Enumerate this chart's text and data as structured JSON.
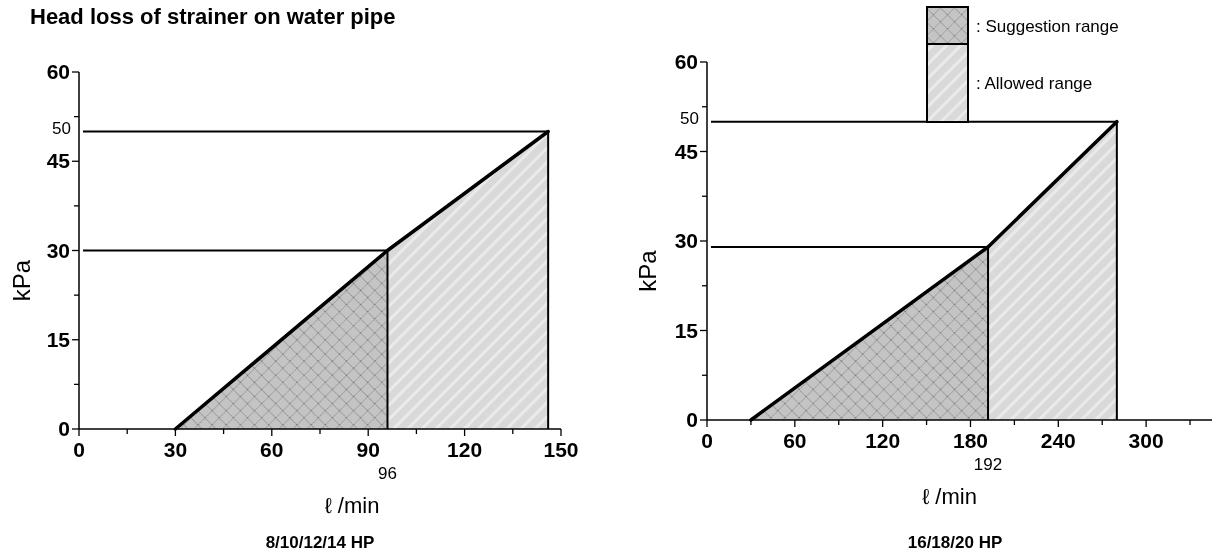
{
  "chart_data": [
    {
      "type": "line",
      "title": "Head loss of strainer on water pipe",
      "xlabel": "ℓ /min",
      "ylabel": "kPa",
      "annotations": [
        "8/10/12/14 HP"
      ],
      "series": [
        {
          "type": "area",
          "color": "#c4c4c4",
          "x": [
            30,
            96
          ],
          "values": [
            0,
            30
          ]
        },
        {
          "type": "area",
          "color": "#d9d9d9",
          "x": [
            96,
            146
          ],
          "values": [
            30,
            50
          ]
        },
        {
          "type": "line",
          "color": "#000000",
          "x": [
            30,
            96,
            146
          ],
          "values": [
            0,
            30,
            50
          ]
        }
      ],
      "xlim": [
        0,
        150
      ],
      "xticks": [
        0,
        {
          "value": 15,
          "label": null
        },
        30,
        {
          "value": 45,
          "label": null
        },
        60,
        {
          "value": 75,
          "label": null
        },
        90,
        {
          "value": 105,
          "label": null
        },
        120,
        {
          "value": 135,
          "label": null
        },
        150
      ],
      "ylim": [
        0,
        60
      ],
      "yticks": [
        0,
        {
          "value": 7.5,
          "label": null
        },
        15,
        {
          "value": 22.5,
          "label": null
        },
        30,
        {
          "value": 37.5,
          "label": null
        },
        45,
        {
          "value": 52.5,
          "label": null
        },
        60
      ],
      "ref_lines": [
        {
          "axis": "y",
          "value": 50,
          "label": "50"
        },
        {
          "axis": "y",
          "value": 30
        },
        {
          "axis": "x",
          "value": 96,
          "label": "96"
        },
        {
          "axis": "x",
          "value": 146
        }
      ],
      "legend": false
    },
    {
      "type": "line",
      "xlabel": "ℓ /min",
      "ylabel": "kPa",
      "annotations": [
        "16/18/20 HP"
      ],
      "series": [
        {
          "type": "area",
          "name": ": Suggestion range",
          "color": "#c4c4c4",
          "x": [
            30,
            192
          ],
          "values": [
            0,
            29
          ]
        },
        {
          "type": "area",
          "name": ": Allowed range",
          "color": "#d9d9d9",
          "x": [
            192,
            280
          ],
          "values": [
            29,
            50
          ]
        },
        {
          "type": "line",
          "color": "#000000",
          "x": [
            30,
            192,
            280
          ],
          "values": [
            0,
            29,
            50
          ]
        }
      ],
      "xlim": [
        0,
        345
      ],
      "xticks": [
        0,
        {
          "value": 30,
          "label": null
        },
        60,
        {
          "value": 90,
          "label": null
        },
        120,
        {
          "value": 150,
          "label": null
        },
        180,
        {
          "value": 210,
          "label": null
        },
        240,
        {
          "value": 270,
          "label": null
        },
        300,
        {
          "value": 330,
          "label": null
        }
      ],
      "ylim": [
        0,
        60
      ],
      "yticks": [
        0,
        {
          "value": 7.5,
          "label": null
        },
        15,
        {
          "value": 22.5,
          "label": null
        },
        30,
        {
          "value": 37.5,
          "label": null
        },
        45,
        {
          "value": 52.5,
          "label": null
        },
        60
      ],
      "ref_lines": [
        {
          "axis": "y",
          "value": 50,
          "label": "50"
        },
        {
          "axis": "y",
          "value": 29
        },
        {
          "axis": "x",
          "value": 192,
          "label": "192"
        },
        {
          "axis": "x",
          "value": 280
        }
      ],
      "legend": "top"
    }
  ]
}
